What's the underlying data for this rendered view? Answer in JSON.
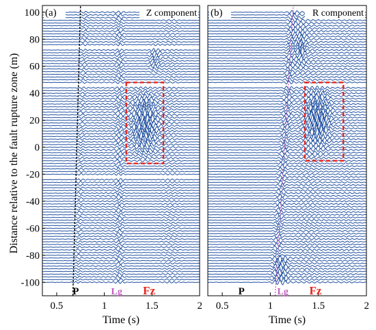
{
  "figure": {
    "ylabel": "Distance relative to the fault rupture zone (m)"
  },
  "colors": {
    "trace": "#1f4fa0",
    "box": "#e8231c",
    "p_marker": "#000000",
    "lg_marker": "#c060c0",
    "fz_label": "#e8231c"
  },
  "chart_data": [
    {
      "type": "line",
      "panel": "(a)",
      "title": "Z component",
      "xlabel": "Time (s)",
      "ylabel": "Distance relative to the fault rupture zone (m)",
      "xlim": [
        0.35,
        2.0
      ],
      "ylim": [
        -110,
        105
      ],
      "x_ticks": [
        0.5,
        1,
        1.5,
        2
      ],
      "x_tick_labels": [
        "0.5",
        "1",
        "1.5",
        "2"
      ],
      "y_ticks": [
        -100,
        -80,
        -60,
        -40,
        -20,
        0,
        20,
        40,
        60,
        80,
        100
      ],
      "y_tick_labels": [
        "-100",
        "-80",
        "-60",
        "-40",
        "-20",
        "0",
        "20",
        "40",
        "60",
        "80",
        "100"
      ],
      "trace_offsets": {
        "start": -100,
        "end": 100,
        "step": 2
      },
      "trace_gaps": [
        -22,
        46,
        74
      ],
      "p_arrival": {
        "time_at_bottom": 0.67,
        "time_at_top": 0.75
      },
      "phase_labels": [
        {
          "text": "P",
          "time": 0.7
        },
        {
          "text": "Lg",
          "time": 1.13
        },
        {
          "text": "Fz",
          "time": 1.47
        }
      ],
      "fault_zone_box": {
        "t0": 1.23,
        "t1": 1.62,
        "d0": -12,
        "d1": 48
      }
    },
    {
      "type": "line",
      "panel": "(b)",
      "title": "R component",
      "xlabel": "Time (s)",
      "ylabel": "",
      "xlim": [
        0.35,
        2.0
      ],
      "ylim": [
        -110,
        105
      ],
      "x_ticks": [
        0.5,
        1,
        1.5,
        2
      ],
      "x_tick_labels": [
        "0.5",
        "1",
        "1.5",
        "2"
      ],
      "y_ticks": [],
      "y_tick_labels": [],
      "trace_offsets": {
        "start": -100,
        "end": 100,
        "step": 2
      },
      "trace_gaps": [
        46
      ],
      "lg_arrival": {
        "time_at_bottom": 1.05,
        "time_at_top": 1.24
      },
      "phase_labels": [
        {
          "text": "P",
          "time": 0.7
        },
        {
          "text": "Lg",
          "time": 1.13
        },
        {
          "text": "Fz",
          "time": 1.47
        }
      ],
      "fault_zone_box": {
        "t0": 1.36,
        "t1": 1.76,
        "d0": -10,
        "d1": 48
      }
    }
  ]
}
